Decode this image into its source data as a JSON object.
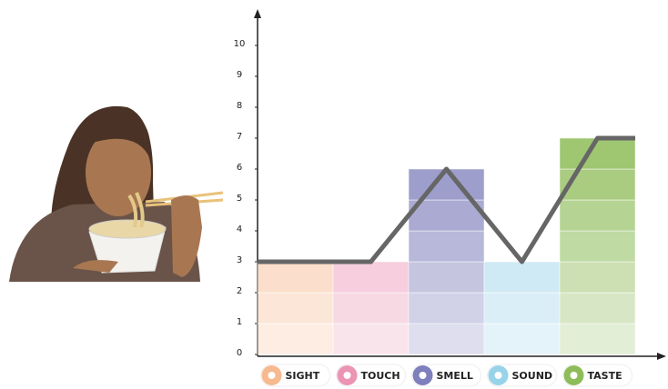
{
  "chart_data": {
    "type": "bar",
    "categories": [
      "SIGHT",
      "TOUCH",
      "SMELL",
      "SOUND",
      "TASTE"
    ],
    "values": [
      3,
      3,
      6,
      3,
      7
    ],
    "colors": [
      "#f7b98f",
      "#ec94b4",
      "#7f7fbd",
      "#98d3ea",
      "#8fbc5a"
    ],
    "ylim": [
      0,
      10
    ],
    "yticks": [
      0,
      1,
      2,
      3,
      4,
      5,
      6,
      7,
      8,
      9,
      10
    ],
    "line_color": "#666666"
  }
}
